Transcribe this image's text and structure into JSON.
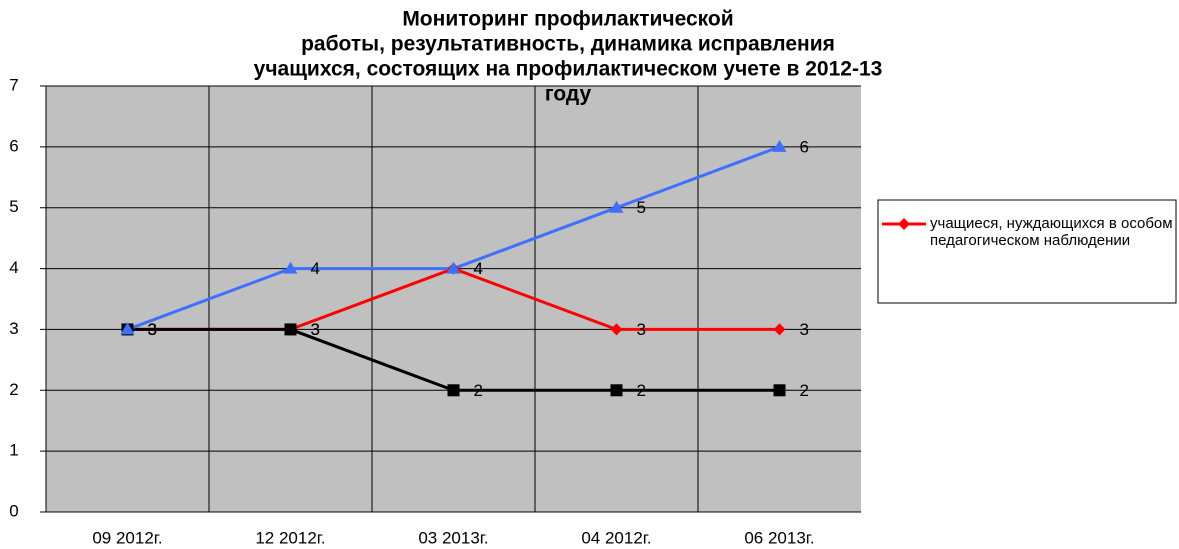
{
  "chart_data": {
    "type": "line",
    "title": [
      "Мониторинг профилактической",
      "работы, результативность, динамика исправления",
      "учащихся, состоящих на профилактическом учете в 2012-13",
      "году"
    ],
    "categories": [
      "09 2012г.",
      "12 2012г.",
      "03 2013г.",
      "04 2012г.",
      "06 2013г."
    ],
    "series": [
      {
        "name": "учащиеся, нуждающихся в особом педагогическом наблюдении",
        "color": "#ff0000",
        "marker": "diamond",
        "values": [
          3,
          3,
          4,
          3,
          3
        ]
      },
      {
        "color": "#000000",
        "marker": "square",
        "values": [
          3,
          3,
          2,
          2,
          2
        ]
      },
      {
        "color": "#3f6fff",
        "marker": "triangle",
        "values": [
          3,
          4,
          4,
          5,
          6
        ]
      }
    ],
    "ylim": [
      0,
      7
    ],
    "yticks": [
      0,
      1,
      2,
      3,
      4,
      5,
      6,
      7
    ],
    "grid": true,
    "plot_background": "#c0c0c0",
    "legend": "right"
  }
}
